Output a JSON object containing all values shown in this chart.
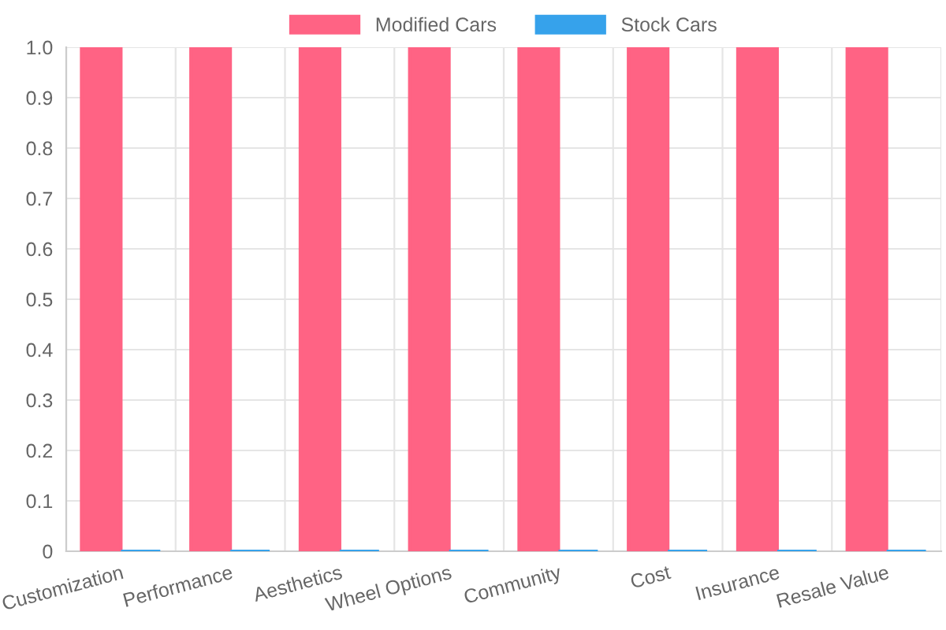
{
  "chart_data": {
    "type": "bar",
    "categories": [
      "Customization",
      "Performance",
      "Aesthetics",
      "Wheel Options",
      "Community",
      "Cost",
      "Insurance",
      "Resale Value"
    ],
    "series": [
      {
        "name": "Modified Cars",
        "color": "#ff6384",
        "values": [
          1,
          1,
          1,
          1,
          1,
          1,
          1,
          1
        ]
      },
      {
        "name": "Stock Cars",
        "color": "#36a2eb",
        "values": [
          0,
          0,
          0,
          0,
          0,
          0,
          0,
          0
        ]
      }
    ],
    "ylim": [
      0,
      1
    ],
    "yticks": [
      0,
      0.1,
      0.2,
      0.3,
      0.4,
      0.5,
      0.6,
      0.7,
      0.8,
      0.9,
      {
        "value": 1,
        "label": "1.0"
      }
    ],
    "grid": true,
    "legend": "top"
  }
}
